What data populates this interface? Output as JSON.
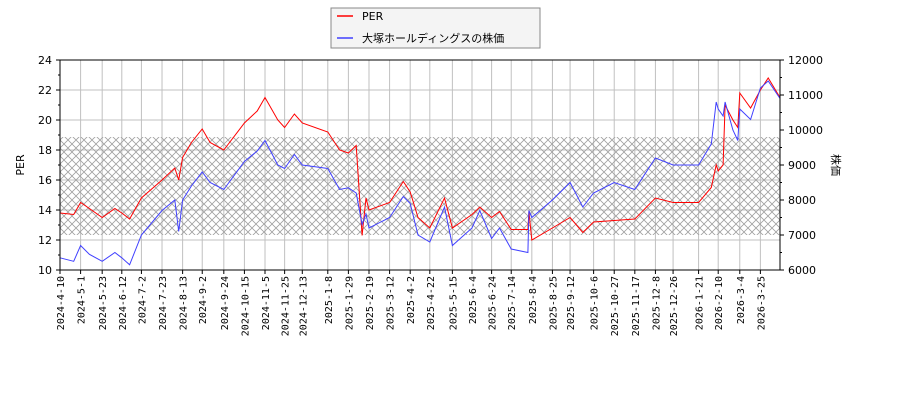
{
  "chart_data": {
    "type": "line",
    "ylabel": "PER",
    "y2label": "株価",
    "ylim": [
      10,
      24
    ],
    "y2lim": [
      6000,
      12000
    ],
    "yticks": [
      10,
      12,
      14,
      16,
      18,
      20,
      22,
      24
    ],
    "y2ticks": [
      6000,
      7000,
      8000,
      9000,
      10000,
      11000,
      12000
    ],
    "xlim": [
      "2024-04-10",
      "2026-04-14"
    ],
    "grid": true,
    "legend_position": "top-center",
    "hatched_band_y2": [
      7000,
      9800
    ],
    "xticks": [
      "2024-4-10",
      "2024-5-1",
      "2024-5-23",
      "2024-6-12",
      "2024-7-2",
      "2024-7-23",
      "2024-8-13",
      "2024-9-2",
      "2024-9-24",
      "2024-10-15",
      "2024-11-5",
      "2024-11-25",
      "2024-12-13",
      "2025-1-8",
      "2025-1-29",
      "2025-2-19",
      "2025-3-12",
      "2025-4-2",
      "2025-4-22",
      "2025-5-15",
      "2025-6-4",
      "2025-6-24",
      "2025-7-14",
      "2025-8-4",
      "2025-8-25",
      "2025-9-12",
      "2025-10-6",
      "2025-10-27",
      "2025-11-17",
      "2025-12-8",
      "2025-12-26",
      "2026-1-21",
      "2026-2-10",
      "2026-3-4",
      "2026-3-25"
    ],
    "series": [
      {
        "name": "PER",
        "axis": "left",
        "color": "#ff0000"
      },
      {
        "name": "大塚ホールディングスの株価",
        "axis": "right",
        "color": "#0000ff"
      }
    ],
    "points": [
      {
        "date": "2024-04-10",
        "per": 13.8,
        "price": 6350
      },
      {
        "date": "2024-04-24",
        "per": 13.7,
        "price": 6250
      },
      {
        "date": "2024-05-01",
        "per": 14.5,
        "price": 6700
      },
      {
        "date": "2024-05-10",
        "per": 14.1,
        "price": 6450
      },
      {
        "date": "2024-05-23",
        "per": 13.5,
        "price": 6250
      },
      {
        "date": "2024-06-05",
        "per": 14.1,
        "price": 6500
      },
      {
        "date": "2024-06-12",
        "per": 13.8,
        "price": 6350
      },
      {
        "date": "2024-06-20",
        "per": 13.4,
        "price": 6150
      },
      {
        "date": "2024-07-02",
        "per": 14.8,
        "price": 7000
      },
      {
        "date": "2024-07-23",
        "per": 16.0,
        "price": 7700
      },
      {
        "date": "2024-08-05",
        "per": 16.8,
        "price": 8000
      },
      {
        "date": "2024-08-09",
        "per": 16.0,
        "price": 7100
      },
      {
        "date": "2024-08-13",
        "per": 17.5,
        "price": 8000
      },
      {
        "date": "2024-08-22",
        "per": 18.5,
        "price": 8400
      },
      {
        "date": "2024-09-02",
        "per": 19.4,
        "price": 8800
      },
      {
        "date": "2024-09-10",
        "per": 18.5,
        "price": 8500
      },
      {
        "date": "2024-09-24",
        "per": 18.0,
        "price": 8300
      },
      {
        "date": "2024-10-15",
        "per": 19.8,
        "price": 9100
      },
      {
        "date": "2024-10-28",
        "per": 20.6,
        "price": 9400
      },
      {
        "date": "2024-11-05",
        "per": 21.5,
        "price": 9700
      },
      {
        "date": "2024-11-18",
        "per": 20.0,
        "price": 9000
      },
      {
        "date": "2024-11-25",
        "per": 19.5,
        "price": 8900
      },
      {
        "date": "2024-12-05",
        "per": 20.4,
        "price": 9300
      },
      {
        "date": "2024-12-13",
        "per": 19.8,
        "price": 9000
      },
      {
        "date": "2025-01-08",
        "per": 19.2,
        "price": 8900
      },
      {
        "date": "2025-01-20",
        "per": 18.0,
        "price": 8300
      },
      {
        "date": "2025-01-29",
        "per": 17.8,
        "price": 8350
      },
      {
        "date": "2025-02-06",
        "per": 18.3,
        "price": 8200
      },
      {
        "date": "2025-02-12",
        "per": 12.3,
        "price": 7300
      },
      {
        "date": "2025-02-16",
        "per": 14.8,
        "price": 7600
      },
      {
        "date": "2025-02-19",
        "per": 14.0,
        "price": 7200
      },
      {
        "date": "2025-03-12",
        "per": 14.5,
        "price": 7500
      },
      {
        "date": "2025-03-26",
        "per": 15.9,
        "price": 8100
      },
      {
        "date": "2025-04-02",
        "per": 15.2,
        "price": 7900
      },
      {
        "date": "2025-04-10",
        "per": 13.5,
        "price": 7000
      },
      {
        "date": "2025-04-22",
        "per": 12.8,
        "price": 6800
      },
      {
        "date": "2025-05-07",
        "per": 14.8,
        "price": 7800
      },
      {
        "date": "2025-05-15",
        "per": 12.8,
        "price": 6700
      },
      {
        "date": "2025-06-04",
        "per": 13.7,
        "price": 7200
      },
      {
        "date": "2025-06-12",
        "per": 14.2,
        "price": 7700
      },
      {
        "date": "2025-06-24",
        "per": 13.5,
        "price": 6900
      },
      {
        "date": "2025-07-02",
        "per": 13.9,
        "price": 7200
      },
      {
        "date": "2025-07-14",
        "per": 12.7,
        "price": 6600
      },
      {
        "date": "2025-07-31",
        "per": 12.7,
        "price": 6500
      },
      {
        "date": "2025-08-01",
        "per": 13.9,
        "price": 7700
      },
      {
        "date": "2025-08-04",
        "per": 12.0,
        "price": 7500
      },
      {
        "date": "2025-08-25",
        "per": 12.8,
        "price": 8000
      },
      {
        "date": "2025-09-12",
        "per": 13.5,
        "price": 8500
      },
      {
        "date": "2025-09-25",
        "per": 12.5,
        "price": 7800
      },
      {
        "date": "2025-10-06",
        "per": 13.2,
        "price": 8200
      },
      {
        "date": "2025-10-27",
        "per": 13.3,
        "price": 8500
      },
      {
        "date": "2025-11-17",
        "per": 13.4,
        "price": 8300
      },
      {
        "date": "2025-12-08",
        "per": 14.8,
        "price": 9200
      },
      {
        "date": "2025-12-26",
        "per": 14.5,
        "price": 9000
      },
      {
        "date": "2026-01-21",
        "per": 14.5,
        "price": 9000
      },
      {
        "date": "2026-02-03",
        "per": 15.5,
        "price": 9600
      },
      {
        "date": "2026-02-08",
        "per": 17.0,
        "price": 10800
      },
      {
        "date": "2026-02-10",
        "per": 16.6,
        "price": 10600
      },
      {
        "date": "2026-02-15",
        "per": 17.0,
        "price": 10400
      },
      {
        "date": "2026-02-17",
        "per": 21.0,
        "price": 10800
      },
      {
        "date": "2026-02-25",
        "per": 20.0,
        "price": 10000
      },
      {
        "date": "2026-03-02",
        "per": 19.5,
        "price": 9700
      },
      {
        "date": "2026-03-04",
        "per": 21.8,
        "price": 10600
      },
      {
        "date": "2026-03-15",
        "per": 20.8,
        "price": 10300
      },
      {
        "date": "2026-03-25",
        "per": 22.0,
        "price": 11200
      },
      {
        "date": "2026-04-02",
        "per": 22.8,
        "price": 11400
      },
      {
        "date": "2026-04-14",
        "per": 21.5,
        "price": 10900
      }
    ]
  }
}
